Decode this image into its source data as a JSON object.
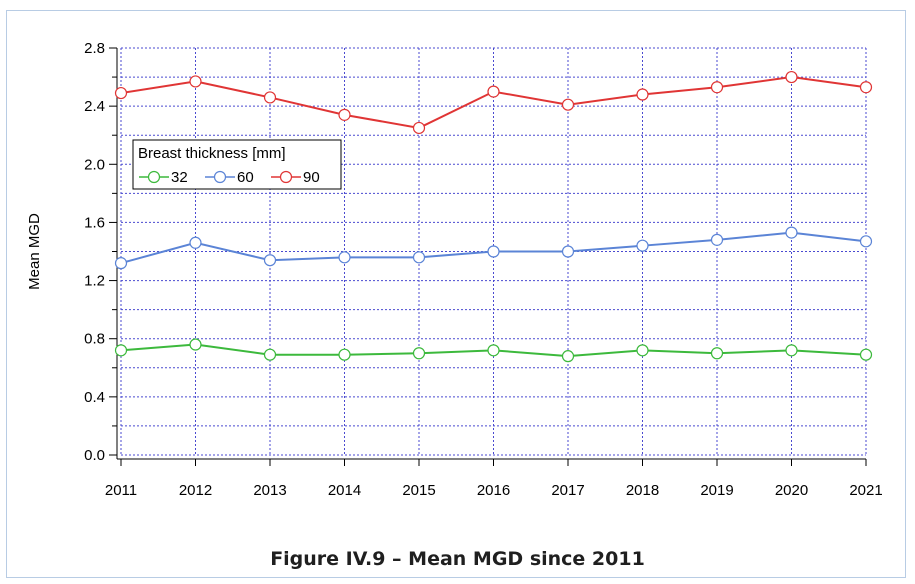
{
  "caption": "Figure IV.9 – Mean MGD since 2011",
  "chart_data": {
    "type": "line",
    "title": "",
    "xlabel": "",
    "ylabel": "Mean MGD",
    "x": [
      "2011",
      "2012",
      "2013",
      "2014",
      "2015",
      "2016",
      "2017",
      "2018",
      "2019",
      "2020",
      "2021"
    ],
    "ylim": [
      0.0,
      2.8
    ],
    "yticks": [
      "0.0",
      "0.4",
      "0.8",
      "1.2",
      "1.6",
      "2.0",
      "2.4",
      "2.8"
    ],
    "grid": true,
    "legend": {
      "title": "Breast thickness [mm]",
      "placement": "upper-left"
    },
    "series": [
      {
        "name": "32",
        "color": "#3cb93c",
        "values": [
          0.72,
          0.76,
          0.69,
          0.69,
          0.7,
          0.72,
          0.68,
          0.72,
          0.7,
          0.72,
          0.69
        ]
      },
      {
        "name": "60",
        "color": "#5b84d6",
        "values": [
          1.32,
          1.46,
          1.34,
          1.36,
          1.36,
          1.4,
          1.4,
          1.44,
          1.48,
          1.53,
          1.47
        ]
      },
      {
        "name": "90",
        "color": "#e03535",
        "values": [
          2.49,
          2.57,
          2.46,
          2.34,
          2.25,
          2.5,
          2.41,
          2.48,
          2.53,
          2.6,
          2.53
        ]
      }
    ]
  }
}
